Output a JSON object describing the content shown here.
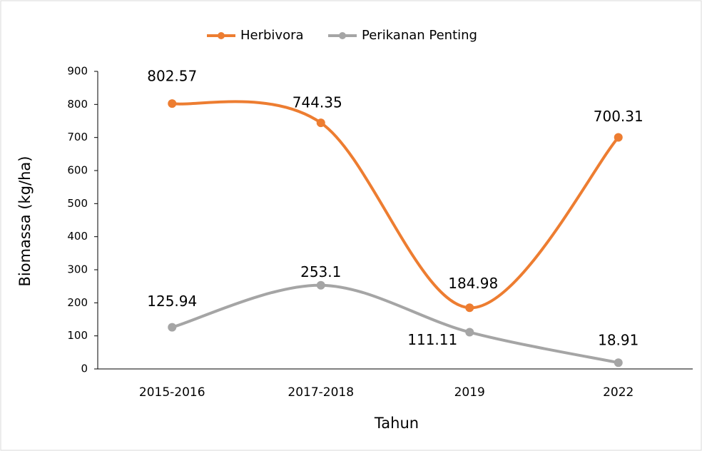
{
  "chart_data": {
    "type": "line",
    "x_label": "Tahun",
    "y_label": "Biomassa (kg/ha)",
    "categories": [
      "2015-2016",
      "2017-2018",
      "2019",
      "2022"
    ],
    "series": [
      {
        "name": "Herbivora",
        "color": "#ED7D31",
        "values": [
          802.57,
          744.35,
          184.98,
          700.31
        ]
      },
      {
        "name": "Perikanan Penting",
        "color": "#A5A5A5",
        "values": [
          125.94,
          253.1,
          111.11,
          18.91
        ]
      }
    ],
    "ylim": [
      0,
      900
    ],
    "yticks": [
      0,
      100,
      200,
      300,
      400,
      500,
      600,
      700,
      800,
      900
    ],
    "smooth": true,
    "legend": "top"
  }
}
